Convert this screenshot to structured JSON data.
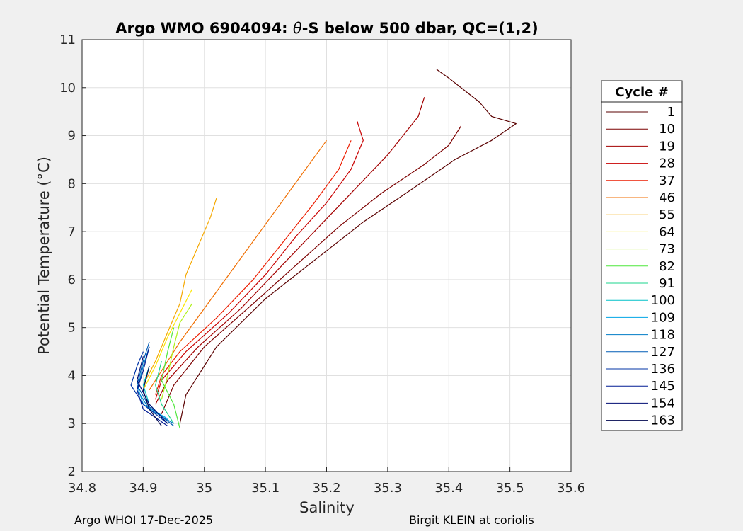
{
  "chart_data": {
    "type": "line",
    "title_prefix": "Argo WMO 6904094: ",
    "title_theta": "θ",
    "title_suffix": "-S below 500 dbar,  QC=(1,2)",
    "xlabel": "Salinity",
    "ylabel": "Potential Temperature (°C)",
    "xlim": [
      34.8,
      35.6
    ],
    "ylim": [
      2,
      11
    ],
    "xticks": [
      "34.8",
      "34.9",
      "35",
      "35.1",
      "35.2",
      "35.3",
      "35.4",
      "35.5",
      "35.6"
    ],
    "yticks": [
      "2",
      "3",
      "4",
      "5",
      "6",
      "7",
      "8",
      "9",
      "10",
      "11"
    ],
    "grid": true,
    "legend_title": "Cycle #",
    "legend_position": "right-outside",
    "series": [
      {
        "name": "1",
        "color": "#5a0000",
        "points": [
          [
            34.96,
            3.0
          ],
          [
            34.97,
            3.6
          ],
          [
            35.02,
            4.6
          ],
          [
            35.1,
            5.6
          ],
          [
            35.18,
            6.4
          ],
          [
            35.26,
            7.2
          ],
          [
            35.33,
            7.8
          ],
          [
            35.41,
            8.5
          ],
          [
            35.47,
            8.9
          ],
          [
            35.51,
            9.25
          ],
          [
            35.47,
            9.4
          ],
          [
            35.45,
            9.7
          ],
          [
            35.43,
            9.9
          ],
          [
            35.4,
            10.2
          ],
          [
            35.38,
            10.38
          ]
        ]
      },
      {
        "name": "10",
        "color": "#7c0000",
        "points": [
          [
            34.93,
            3.2
          ],
          [
            34.95,
            3.8
          ],
          [
            35.0,
            4.6
          ],
          [
            35.08,
            5.5
          ],
          [
            35.15,
            6.3
          ],
          [
            35.22,
            7.1
          ],
          [
            35.29,
            7.8
          ],
          [
            35.36,
            8.4
          ],
          [
            35.4,
            8.8
          ],
          [
            35.42,
            9.2
          ]
        ]
      },
      {
        "name": "19",
        "color": "#a30000",
        "points": [
          [
            34.92,
            3.4
          ],
          [
            34.94,
            3.9
          ],
          [
            34.99,
            4.6
          ],
          [
            35.06,
            5.4
          ],
          [
            35.12,
            6.2
          ],
          [
            35.18,
            7.0
          ],
          [
            35.24,
            7.8
          ],
          [
            35.3,
            8.6
          ],
          [
            35.35,
            9.4
          ],
          [
            35.36,
            9.8
          ]
        ]
      },
      {
        "name": "28",
        "color": "#c80000",
        "points": [
          [
            34.92,
            3.5
          ],
          [
            34.93,
            3.9
          ],
          [
            34.97,
            4.5
          ],
          [
            35.04,
            5.3
          ],
          [
            35.1,
            6.1
          ],
          [
            35.15,
            6.9
          ],
          [
            35.2,
            7.6
          ],
          [
            35.24,
            8.3
          ],
          [
            35.26,
            8.9
          ],
          [
            35.25,
            9.3
          ]
        ]
      },
      {
        "name": "37",
        "color": "#ec1d00",
        "points": [
          [
            34.92,
            3.6
          ],
          [
            34.93,
            4.0
          ],
          [
            34.96,
            4.5
          ],
          [
            35.02,
            5.2
          ],
          [
            35.08,
            6.0
          ],
          [
            35.13,
            6.8
          ],
          [
            35.18,
            7.6
          ],
          [
            35.22,
            8.3
          ],
          [
            35.24,
            8.9
          ]
        ]
      },
      {
        "name": "46",
        "color": "#f06e00",
        "points": [
          [
            34.91,
            3.7
          ],
          [
            34.93,
            4.1
          ],
          [
            34.96,
            4.7
          ],
          [
            35.0,
            5.4
          ],
          [
            35.04,
            6.1
          ],
          [
            35.08,
            6.8
          ],
          [
            35.12,
            7.5
          ],
          [
            35.16,
            8.2
          ],
          [
            35.2,
            8.9
          ]
        ]
      },
      {
        "name": "55",
        "color": "#f5a800",
        "points": [
          [
            34.9,
            3.8
          ],
          [
            34.92,
            4.3
          ],
          [
            34.94,
            4.9
          ],
          [
            34.96,
            5.5
          ],
          [
            34.97,
            6.1
          ],
          [
            34.99,
            6.7
          ],
          [
            35.01,
            7.3
          ],
          [
            35.02,
            7.7
          ]
        ]
      },
      {
        "name": "64",
        "color": "#fce600",
        "points": [
          [
            34.9,
            3.7
          ],
          [
            34.92,
            4.2
          ],
          [
            34.94,
            4.8
          ],
          [
            34.96,
            5.3
          ],
          [
            34.98,
            5.8
          ]
        ]
      },
      {
        "name": "73",
        "color": "#aef019",
        "points": [
          [
            34.93,
            3.5
          ],
          [
            34.94,
            4.0
          ],
          [
            34.95,
            4.6
          ],
          [
            34.96,
            5.1
          ],
          [
            34.98,
            5.5
          ]
        ]
      },
      {
        "name": "82",
        "color": "#4ee73b",
        "points": [
          [
            34.96,
            2.9
          ],
          [
            34.95,
            3.4
          ],
          [
            34.93,
            3.9
          ],
          [
            34.94,
            4.5
          ],
          [
            34.95,
            5.0
          ]
        ]
      },
      {
        "name": "91",
        "color": "#1bd58c",
        "points": [
          [
            34.95,
            3.0
          ],
          [
            34.93,
            3.4
          ],
          [
            34.92,
            3.8
          ],
          [
            34.93,
            4.3
          ]
        ]
      },
      {
        "name": "100",
        "color": "#00c1c8",
        "points": [
          [
            34.94,
            3.0
          ],
          [
            34.91,
            3.4
          ],
          [
            34.9,
            3.8
          ],
          [
            34.91,
            4.2
          ]
        ]
      },
      {
        "name": "109",
        "color": "#00a5e6",
        "points": [
          [
            34.94,
            3.1
          ],
          [
            34.9,
            3.4
          ],
          [
            34.89,
            3.8
          ],
          [
            34.9,
            4.3
          ]
        ]
      },
      {
        "name": "118",
        "color": "#007cc6",
        "points": [
          [
            34.95,
            3.0
          ],
          [
            34.91,
            3.3
          ],
          [
            34.89,
            3.7
          ],
          [
            34.9,
            4.2
          ],
          [
            34.91,
            4.6
          ]
        ]
      },
      {
        "name": "127",
        "color": "#005bb5",
        "points": [
          [
            34.95,
            2.95
          ],
          [
            34.91,
            3.35
          ],
          [
            34.89,
            3.8
          ],
          [
            34.9,
            4.3
          ],
          [
            34.91,
            4.7
          ]
        ]
      },
      {
        "name": "136",
        "color": "#0033a6",
        "points": [
          [
            34.94,
            3.0
          ],
          [
            34.9,
            3.4
          ],
          [
            34.88,
            3.8
          ],
          [
            34.89,
            4.2
          ],
          [
            34.9,
            4.5
          ]
        ]
      },
      {
        "name": "145",
        "color": "#001a93",
        "points": [
          [
            34.94,
            2.95
          ],
          [
            34.9,
            3.3
          ],
          [
            34.89,
            3.7
          ],
          [
            34.9,
            4.1
          ],
          [
            34.91,
            4.6
          ]
        ]
      },
      {
        "name": "154",
        "color": "#000c73",
        "points": [
          [
            34.94,
            3.0
          ],
          [
            34.91,
            3.4
          ],
          [
            34.89,
            3.9
          ],
          [
            34.9,
            4.4
          ]
        ]
      },
      {
        "name": "163",
        "color": "#00064f",
        "points": [
          [
            34.93,
            2.95
          ],
          [
            34.91,
            3.3
          ],
          [
            34.9,
            3.7
          ],
          [
            34.91,
            4.2
          ]
        ]
      }
    ]
  },
  "footer": {
    "left": "Argo WHOI 17-Dec-2025",
    "right": "Birgit KLEIN at coriolis"
  }
}
